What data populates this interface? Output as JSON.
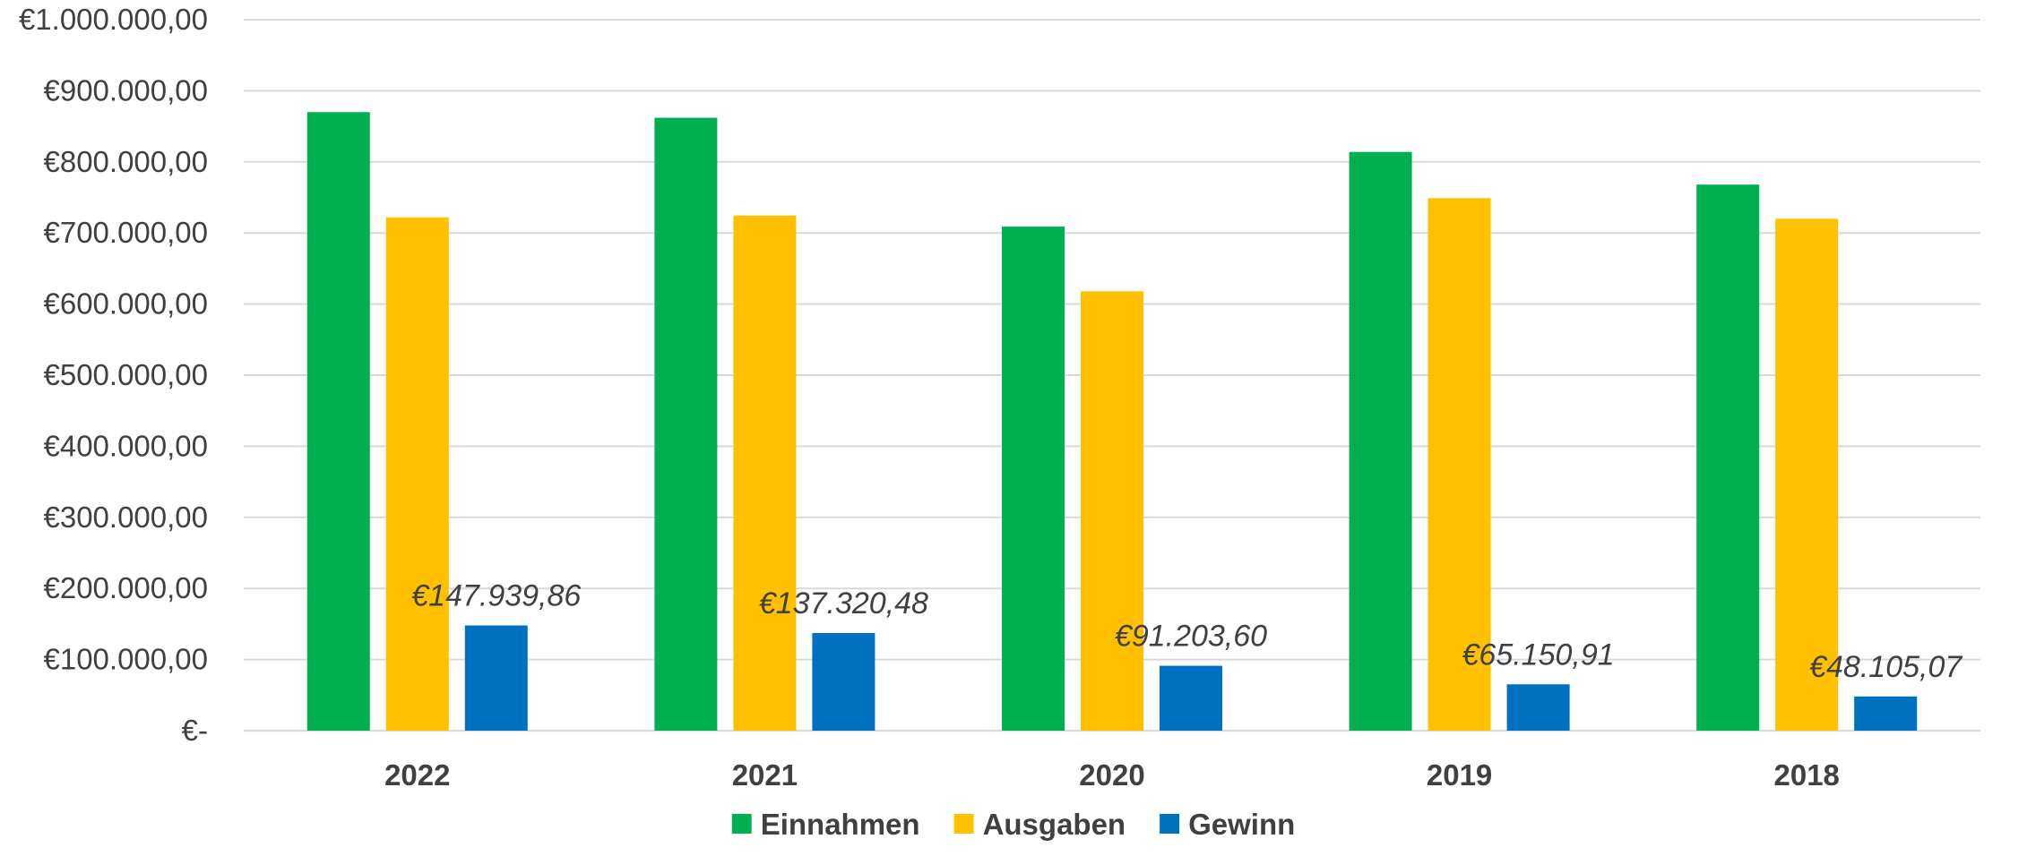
{
  "chart_data": {
    "type": "bar",
    "title": "",
    "xlabel": "",
    "ylabel": "",
    "categories": [
      "2022",
      "2021",
      "2020",
      "2019",
      "2018"
    ],
    "series": [
      {
        "name": "Einnahmen",
        "color": "#00b050",
        "values": [
          870000,
          862000,
          709000,
          814000,
          768000
        ]
      },
      {
        "name": "Ausgaben",
        "color": "#ffc000",
        "values": [
          722000,
          724500,
          618000,
          749000,
          720000
        ]
      },
      {
        "name": "Gewinn",
        "color": "#0070c0",
        "values": [
          147939.86,
          137320.48,
          91203.6,
          65150.91,
          48105.07
        ],
        "data_labels": [
          "€147.939,86",
          "€137.320,48",
          "€91.203,60",
          "€65.150,91",
          "€48.105,07"
        ]
      }
    ],
    "ylim": [
      0,
      1000000
    ],
    "y_tick_labels": [
      "€-",
      "€100.000,00",
      "€200.000,00",
      "€300.000,00",
      "€400.000,00",
      "€500.000,00",
      "€600.000,00",
      "€700.000,00",
      "€800.000,00",
      "€900.000,00",
      "€1.000.000,00"
    ],
    "grid": true,
    "legend_position": "bottom"
  }
}
